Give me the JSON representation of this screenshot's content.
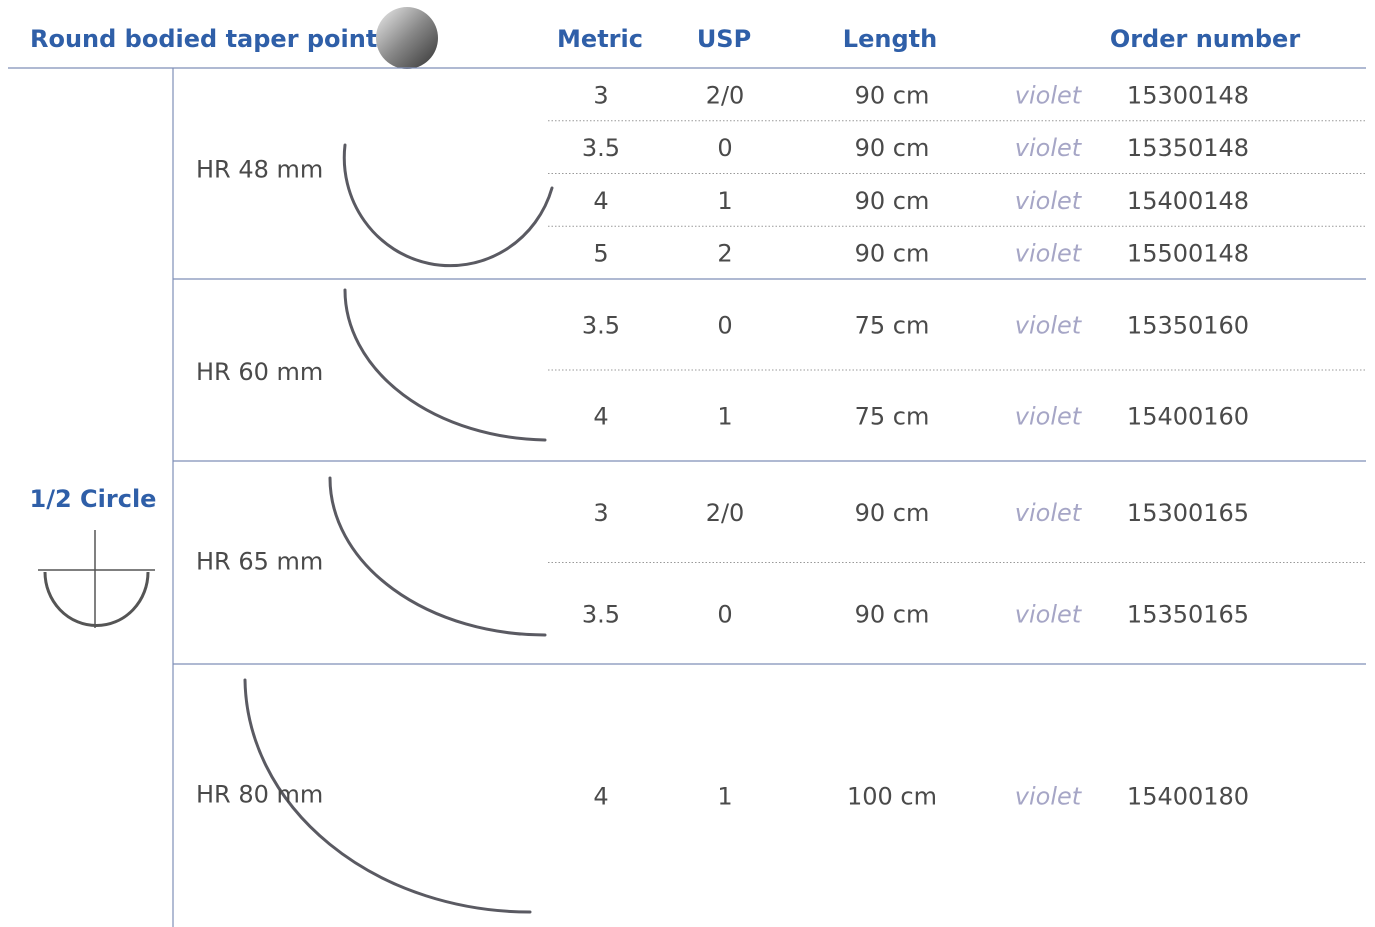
{
  "header": {
    "title": "Round bodied taper point",
    "columns": [
      "Metric",
      "USP",
      "Length",
      "Order number"
    ]
  },
  "shape": {
    "label": "1/2 Circle"
  },
  "groups": [
    {
      "label": "HR 48 mm",
      "rows": [
        [
          "3",
          "2/0",
          "90 cm",
          "violet",
          "15300148"
        ],
        [
          "3.5",
          "0",
          "90 cm",
          "violet",
          "15350148"
        ],
        [
          "4",
          "1",
          "90 cm",
          "violet",
          "15400148"
        ],
        [
          "5",
          "2",
          "90 cm",
          "violet",
          "15500148"
        ]
      ]
    },
    {
      "label": "HR 60 mm",
      "rows": [
        [
          "3.5",
          "0",
          "75 cm",
          "violet",
          "15350160"
        ],
        [
          "4",
          "1",
          "75 cm",
          "violet",
          "15400160"
        ]
      ]
    },
    {
      "label": "HR 65 mm",
      "rows": [
        [
          "3",
          "2/0",
          "90 cm",
          "violet",
          "15300165"
        ],
        [
          "3.5",
          "0",
          "90 cm",
          "violet",
          "15350165"
        ]
      ]
    },
    {
      "label": "HR 80 mm",
      "rows": [
        [
          "4",
          "1",
          "100 cm",
          "violet",
          "15400180"
        ]
      ]
    }
  ]
}
